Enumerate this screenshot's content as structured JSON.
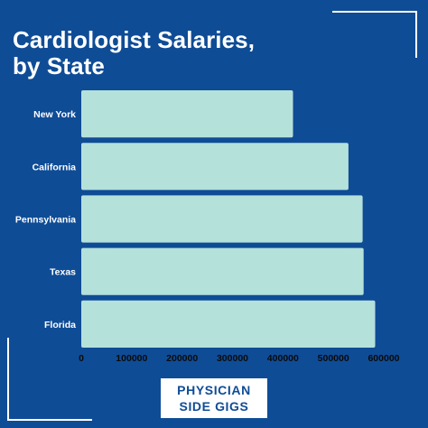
{
  "title": "Cardiologist Salaries,\nby State",
  "brand": {
    "line1": "PHYSICIAN",
    "line2": "SIDE GIGS"
  },
  "colors": {
    "background": "#0f4c96",
    "bar": "#b5e1db",
    "text": "#ffffff",
    "axis": "#0a0a0a"
  },
  "chart_data": {
    "type": "bar",
    "orientation": "horizontal",
    "categories": [
      "New York",
      "California",
      "Pennsylvania",
      "Texas",
      "Florida"
    ],
    "values": [
      420000,
      530000,
      558000,
      560000,
      583000
    ],
    "xlim": [
      0,
      600000
    ],
    "xticks": [
      0,
      100000,
      200000,
      300000,
      400000,
      500000,
      600000
    ],
    "xtick_labels": [
      "0",
      "100000",
      "200000",
      "300000",
      "400000",
      "500000",
      "600000"
    ],
    "grid": false,
    "legend": "none"
  }
}
